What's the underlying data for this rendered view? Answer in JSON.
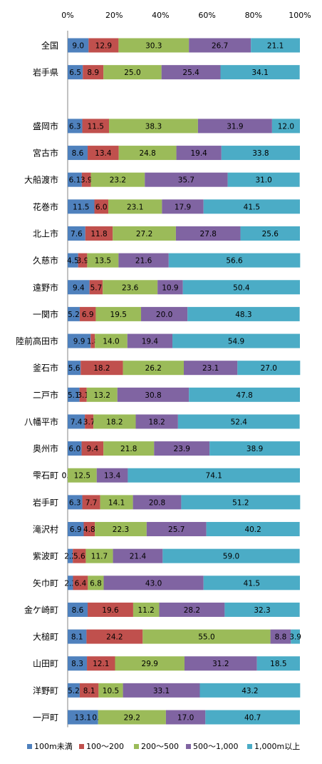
{
  "chart_data": {
    "type": "bar",
    "orientation": "horizontal",
    "stacked": true,
    "percent": true,
    "xlim": [
      0,
      100
    ],
    "x_ticks": [
      "0%",
      "20%",
      "40%",
      "60%",
      "80%",
      "100%"
    ],
    "x_axis_position": "top",
    "grid": false,
    "legend_position": "bottom",
    "categories": [
      "全国",
      "岩手県",
      "",
      "盛岡市",
      "宮古市",
      "大船渡市",
      "花巻市",
      "北上市",
      "久慈市",
      "遠野市",
      "一関市",
      "陸前高田市",
      "釜石市",
      "二戸市",
      "八幡平市",
      "奥州市",
      "雫石町",
      "岩手町",
      "滝沢村",
      "紫波町",
      "矢巾町",
      "金ケ崎町",
      "大槌町",
      "山田町",
      "洋野町",
      "一戸町"
    ],
    "series": [
      {
        "name": "100m未満",
        "color": "#4F81BD",
        "values": [
          9.0,
          6.5,
          null,
          6.3,
          8.6,
          6.1,
          11.5,
          7.6,
          4.5,
          9.4,
          5.2,
          9.9,
          5.6,
          5.1,
          7.4,
          6.0,
          0.0,
          6.3,
          6.9,
          2.2,
          2.3,
          8.6,
          8.1,
          8.3,
          5.2,
          13.1
        ]
      },
      {
        "name": "100～200",
        "color": "#C0504D",
        "values": [
          12.9,
          8.9,
          null,
          11.5,
          13.4,
          3.9,
          6.0,
          11.8,
          3.9,
          5.7,
          6.9,
          1.8,
          18.2,
          3.1,
          3.7,
          9.4,
          0.0,
          7.7,
          4.8,
          5.6,
          6.4,
          19.6,
          24.2,
          12.1,
          8.1,
          0.0
        ]
      },
      {
        "name": "200～500",
        "color": "#9BBB59",
        "values": [
          30.3,
          25.0,
          null,
          38.3,
          24.8,
          23.2,
          23.1,
          27.2,
          13.5,
          23.6,
          19.5,
          14.0,
          26.2,
          13.2,
          18.2,
          21.8,
          12.5,
          14.1,
          22.3,
          11.7,
          6.8,
          11.2,
          55.0,
          29.9,
          10.5,
          29.2
        ]
      },
      {
        "name": "500～1,000",
        "color": "#8064A2",
        "values": [
          26.7,
          25.4,
          null,
          31.9,
          19.4,
          35.7,
          17.9,
          27.8,
          21.6,
          10.9,
          20.0,
          19.4,
          23.1,
          30.8,
          18.2,
          23.9,
          13.4,
          20.8,
          25.7,
          21.4,
          43.0,
          28.2,
          8.8,
          31.2,
          33.1,
          17.0
        ]
      },
      {
        "name": "1,000m以上",
        "color": "#4BACC6",
        "values": [
          21.1,
          34.1,
          null,
          12.0,
          33.8,
          31.0,
          41.5,
          25.6,
          56.6,
          50.4,
          48.3,
          54.9,
          27.0,
          47.8,
          52.4,
          38.9,
          74.1,
          51.2,
          40.2,
          59.0,
          41.5,
          32.3,
          3.9,
          18.5,
          43.2,
          40.7
        ]
      }
    ]
  }
}
